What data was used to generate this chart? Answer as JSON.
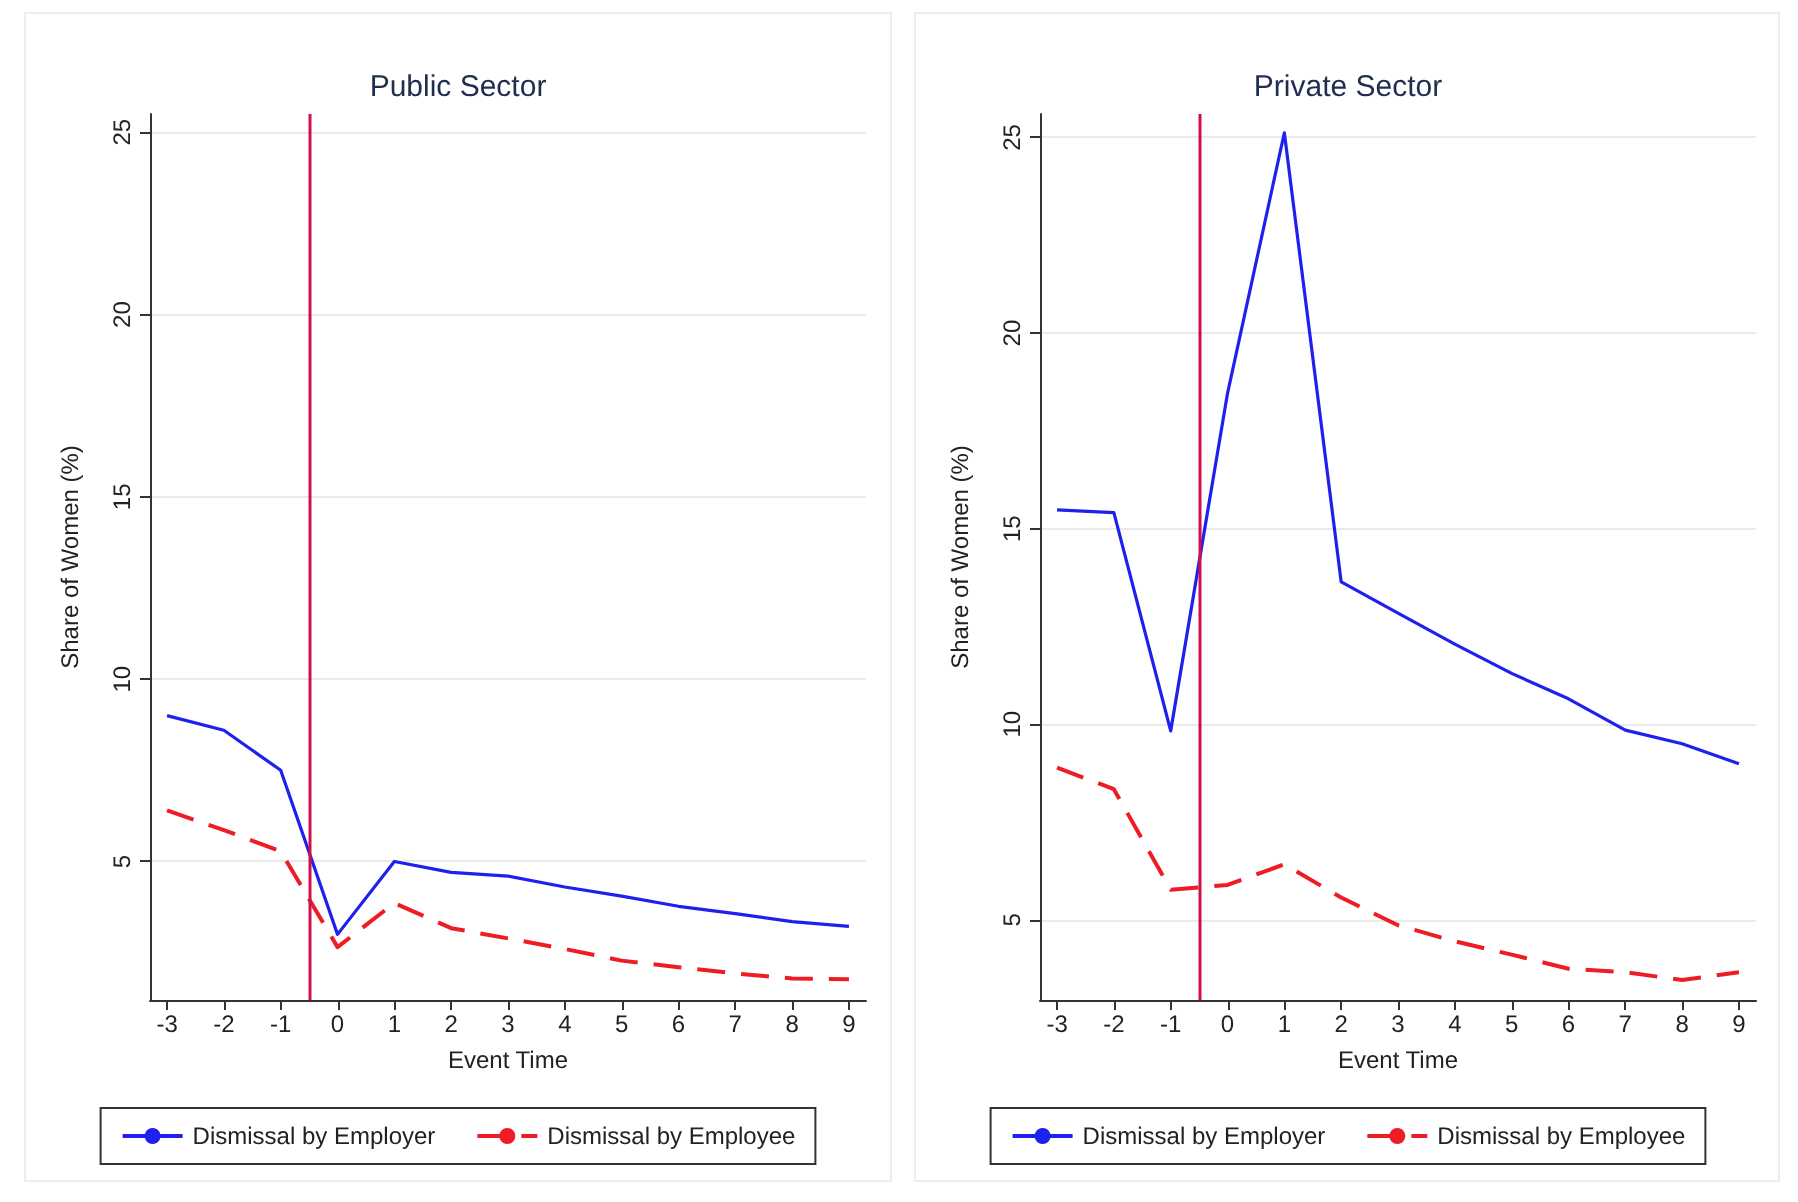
{
  "chart_data": [
    {
      "type": "line",
      "title": "Public Sector",
      "xlabel": "Event Time",
      "ylabel": "Share of Women (%)",
      "x": [
        -3,
        -2,
        -1,
        0,
        1,
        2,
        3,
        4,
        5,
        6,
        7,
        8,
        9
      ],
      "series": [
        {
          "name": "Dismissal by Employer",
          "color": "#2020ee",
          "line_style": "solid",
          "values": [
            9.0,
            8.6,
            7.5,
            3.0,
            5.0,
            4.7,
            4.6,
            4.3,
            4.05,
            3.77,
            3.57,
            3.35,
            3.22
          ]
        },
        {
          "name": "Dismissal by Employee",
          "color": "#ee1c24",
          "line_style": "dashed",
          "values": [
            6.4,
            5.86,
            5.28,
            2.65,
            3.86,
            3.17,
            2.89,
            2.6,
            2.28,
            2.1,
            1.93,
            1.79,
            1.77
          ]
        }
      ],
      "xlim": [
        -3.3,
        9.3
      ],
      "xticks": [
        -3,
        -2,
        -1,
        0,
        1,
        2,
        3,
        4,
        5,
        6,
        7,
        8,
        9
      ],
      "ylim": [
        1.2,
        25.5
      ],
      "yticks": [
        5,
        10,
        15,
        20,
        25
      ],
      "ref_lines": [
        {
          "axis": "x",
          "value": -0.5,
          "color": "#d0104c"
        }
      ],
      "grid": "y",
      "legend": "bottom",
      "marker": "none"
    },
    {
      "type": "line",
      "title": "Private Sector",
      "xlabel": "Event Time",
      "ylabel": "Share of Women (%)",
      "x": [
        -3,
        -2,
        -1,
        0,
        1,
        2,
        3,
        4,
        5,
        6,
        7,
        8,
        9
      ],
      "series": [
        {
          "name": "Dismissal by Employer",
          "color": "#2020ee",
          "line_style": "solid",
          "values": [
            15.48,
            15.41,
            9.83,
            18.46,
            25.12,
            13.64,
            12.84,
            12.05,
            11.3,
            10.65,
            9.85,
            9.5,
            8.99
          ]
        },
        {
          "name": "Dismissal by Employee",
          "color": "#ee1c24",
          "line_style": "dashed",
          "values": [
            8.89,
            8.34,
            5.77,
            5.89,
            6.42,
            5.57,
            4.86,
            4.45,
            4.11,
            3.75,
            3.66,
            3.46,
            3.66
          ]
        }
      ],
      "xlim": [
        -3.3,
        9.3
      ],
      "xticks": [
        -3,
        -2,
        -1,
        0,
        1,
        2,
        3,
        4,
        5,
        6,
        7,
        8,
        9
      ],
      "ylim": [
        2.95,
        25.6
      ],
      "yticks": [
        5,
        10,
        15,
        20,
        25
      ],
      "ref_lines": [
        {
          "axis": "x",
          "value": -0.5,
          "color": "#d0104c"
        }
      ],
      "grid": "y",
      "legend": "bottom",
      "marker": "none"
    }
  ]
}
